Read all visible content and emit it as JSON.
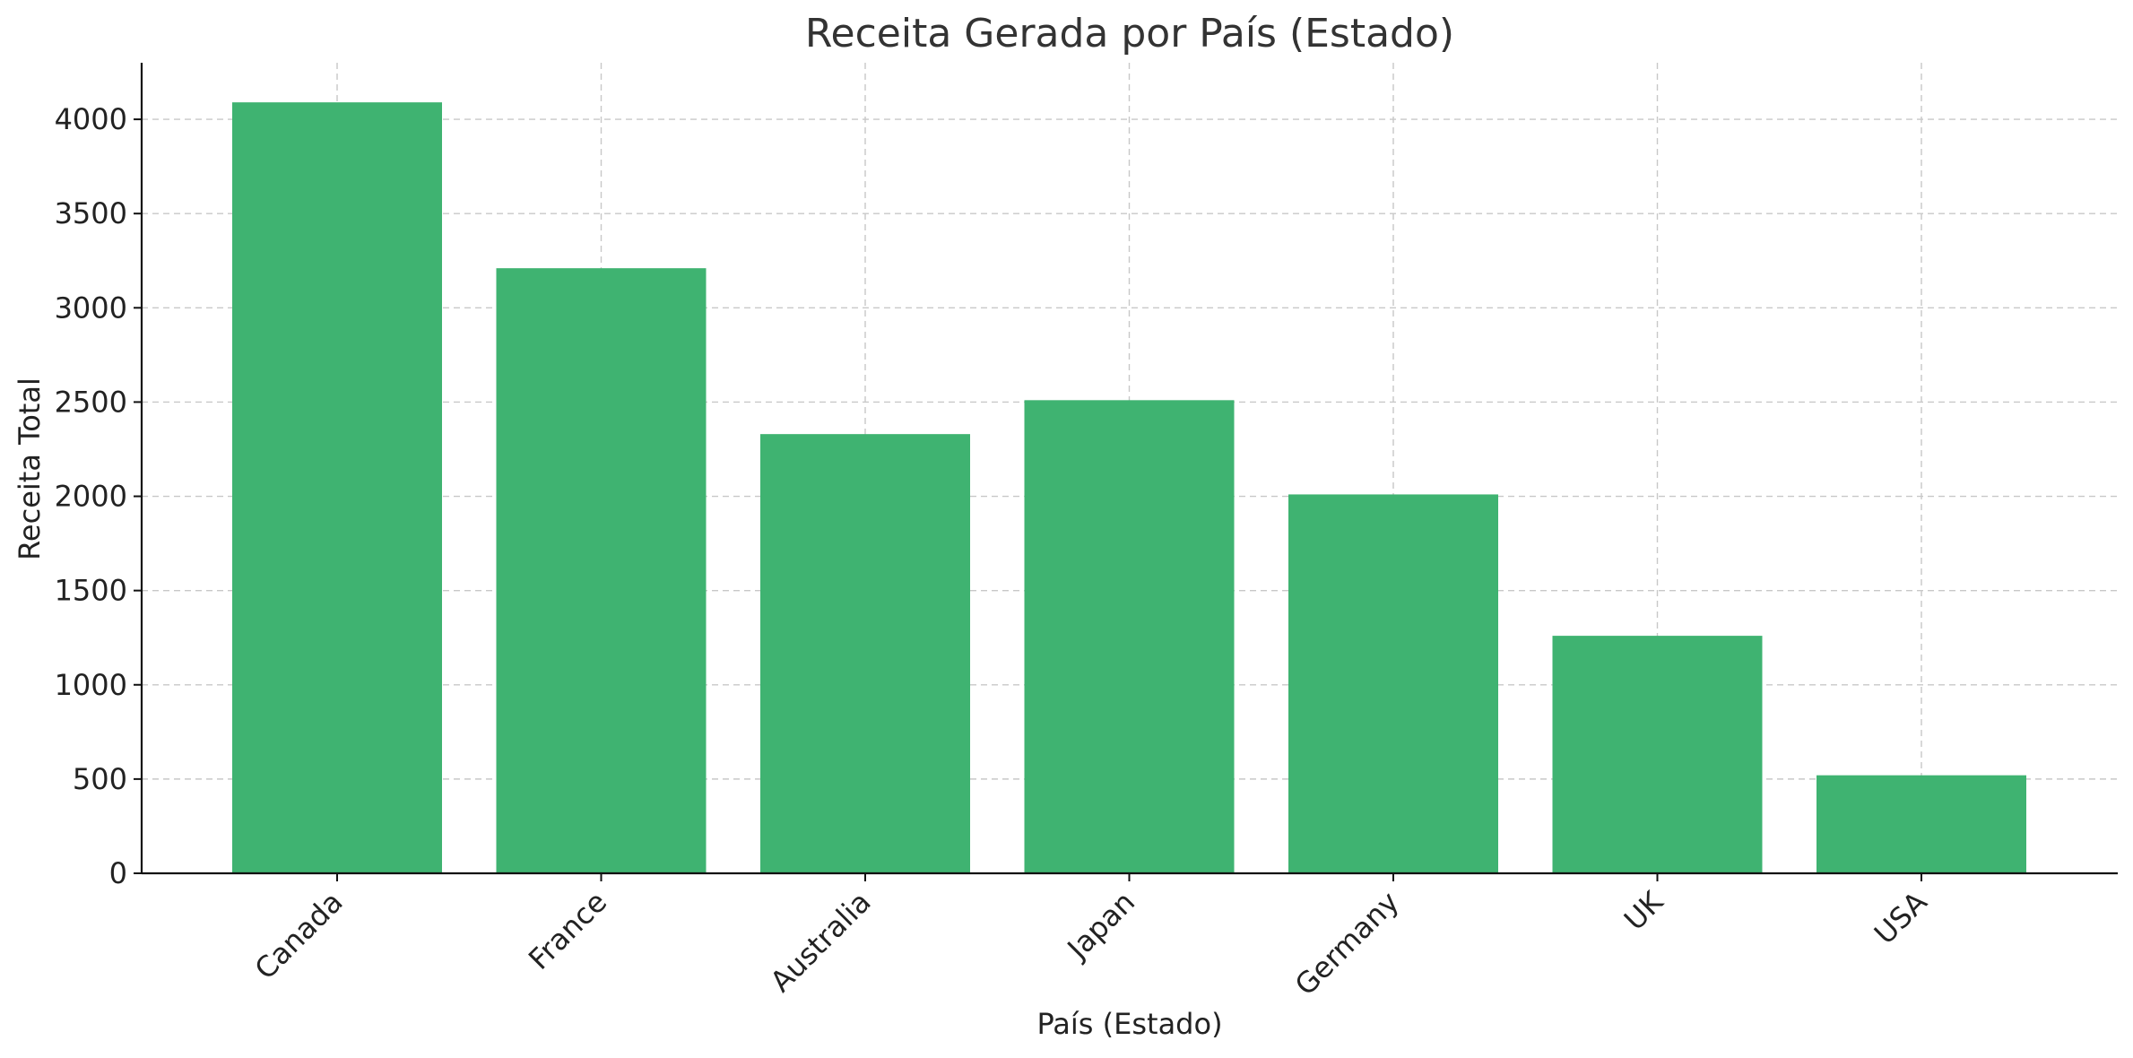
{
  "chart_data": {
    "type": "bar",
    "title": "Receita Gerada por País (Estado)",
    "xlabel": "País (Estado)",
    "ylabel": "Receita Total",
    "categories": [
      "Canada",
      "France",
      "Australia",
      "Japan",
      "Germany",
      "UK",
      "USA"
    ],
    "values": [
      4090,
      3210,
      2330,
      2510,
      2010,
      1260,
      520
    ],
    "ylim": [
      0,
      4300
    ],
    "yticks": [
      "0",
      "500",
      "1000",
      "1500",
      "2000",
      "2500",
      "3000",
      "3500",
      "4000"
    ],
    "grid": true,
    "bar_color": "#3fb371",
    "x_tick_rotation_deg": -45
  }
}
